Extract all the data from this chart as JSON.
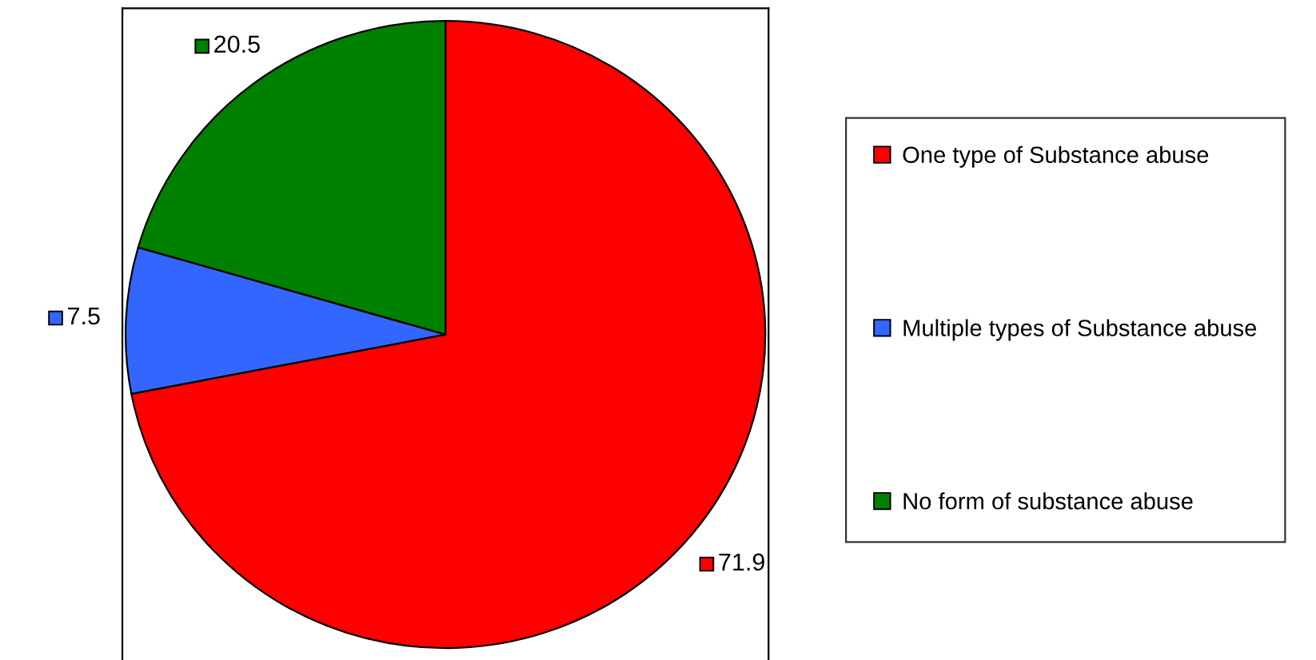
{
  "chart_data": {
    "type": "pie",
    "categories": [
      "One type of Substance abuse",
      "Multiple types of Substance abuse",
      "No form of substance abuse"
    ],
    "values": [
      71.9,
      7.5,
      20.5
    ],
    "colors": [
      "#ff0000",
      "#3366ff",
      "#008000"
    ],
    "data_labels": true,
    "legend": "right"
  }
}
